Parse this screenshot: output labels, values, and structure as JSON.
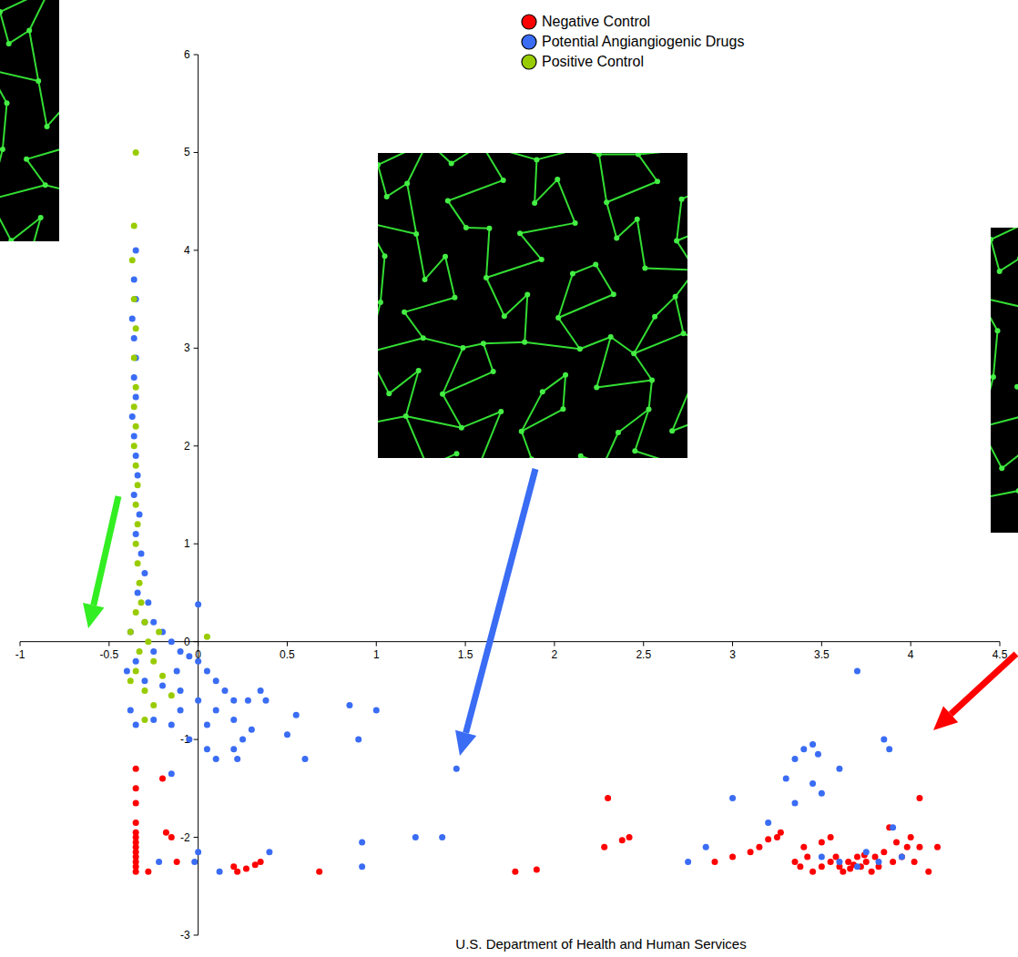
{
  "chart_data": {
    "type": "scatter",
    "annotations": [
      "U.S. Department of Health and Human Services"
    ],
    "xlim": [
      -1,
      4.5
    ],
    "ylim": [
      -3,
      6
    ],
    "xticks": [
      -1,
      -0.5,
      0,
      0.5,
      1,
      1.5,
      2,
      2.5,
      3,
      3.5,
      4,
      4.5
    ],
    "yticks": [
      -3,
      -2,
      -1,
      0,
      1,
      2,
      3,
      4,
      5,
      6
    ],
    "grid": false,
    "legend": "top-right",
    "marker": "circle",
    "series": [
      {
        "name": "Negative Control",
        "color": "#ff0000",
        "x": [
          -0.35,
          -0.35,
          -0.35,
          -0.35,
          -0.35,
          -0.35,
          -0.35,
          -0.35,
          -0.35,
          -0.35,
          -0.35,
          -0.35,
          -0.35,
          -0.28,
          -0.2,
          -0.18,
          -0.15,
          -0.12,
          0.2,
          0.22,
          0.27,
          0.32,
          0.35,
          0.68,
          1.78,
          1.9,
          2.3,
          2.28,
          2.38,
          2.42,
          2.9,
          3.0,
          3.1,
          3.15,
          3.2,
          3.25,
          3.27,
          3.35,
          3.38,
          3.42,
          3.45,
          3.5,
          3.5,
          3.55,
          3.58,
          3.6,
          3.62,
          3.65,
          3.68,
          3.7,
          3.72,
          3.75,
          3.78,
          3.8,
          3.82,
          3.85,
          3.88,
          3.9,
          3.92,
          3.95,
          3.98,
          4.0,
          4.02,
          4.05,
          4.05,
          4.1,
          4.15,
          3.4,
          3.55,
          3.66,
          3.74
        ],
        "values": [
          -1.3,
          -1.5,
          -1.65,
          -1.85,
          -1.95,
          -2.0,
          -2.05,
          -2.1,
          -2.15,
          -2.2,
          -2.25,
          -2.3,
          -2.35,
          -2.35,
          -1.4,
          -1.95,
          -2.0,
          -2.25,
          -2.3,
          -2.35,
          -2.32,
          -2.28,
          -2.25,
          -2.35,
          -2.35,
          -2.33,
          -1.6,
          -2.1,
          -2.03,
          -2.0,
          -2.25,
          -2.2,
          -2.15,
          -2.1,
          -2.02,
          -2.0,
          -1.95,
          -2.25,
          -2.3,
          -2.2,
          -2.35,
          -2.05,
          -2.3,
          -2.25,
          -2.2,
          -2.3,
          -2.35,
          -2.25,
          -2.28,
          -2.2,
          -2.3,
          -2.25,
          -2.35,
          -2.2,
          -2.3,
          -2.15,
          -1.9,
          -2.25,
          -2.05,
          -2.2,
          -2.1,
          -2.0,
          -2.25,
          -1.6,
          -2.1,
          -2.35,
          -2.1,
          -2.1,
          -2.0,
          -2.32,
          -2.18
        ]
      },
      {
        "name": "Potential Angiangiogenic Drugs",
        "color": "#3a6cf4",
        "x": [
          -0.35,
          -0.36,
          -0.35,
          -0.37,
          -0.36,
          -0.35,
          -0.36,
          -0.35,
          -0.37,
          -0.36,
          -0.35,
          -0.34,
          -0.36,
          -0.33,
          -0.35,
          -0.32,
          -0.3,
          -0.34,
          -0.28,
          -0.25,
          -0.2,
          -0.15,
          -0.1,
          -0.05,
          0.0,
          0.0,
          0.05,
          0.1,
          0.15,
          0.2,
          -0.4,
          -0.3,
          -0.2,
          -0.1,
          0.0,
          0.1,
          0.2,
          0.28,
          0.35,
          0.38,
          0.3,
          0.25,
          0.2,
          0.22,
          0.1,
          0.05,
          -0.05,
          -0.15,
          0.5,
          0.6,
          0.55,
          0.85,
          0.9,
          1.0,
          1.45,
          -0.25,
          -0.35,
          -0.15,
          -0.22,
          -0.02,
          0.0,
          0.12,
          0.4,
          0.92,
          0.92,
          1.22,
          1.37,
          2.75,
          2.85,
          3.0,
          3.2,
          3.3,
          3.35,
          3.4,
          3.45,
          3.48,
          3.5,
          3.6,
          3.7,
          3.85,
          3.88,
          3.9,
          3.95,
          3.5,
          3.6,
          3.7,
          3.75,
          3.82,
          3.45,
          3.35,
          0.05,
          -0.1,
          -0.38,
          -0.3,
          -0.38,
          -0.25,
          -0.35,
          -0.12
        ],
        "values": [
          4.0,
          3.7,
          3.5,
          3.3,
          3.1,
          2.9,
          2.7,
          2.5,
          2.3,
          2.1,
          1.9,
          1.7,
          1.5,
          1.3,
          1.1,
          0.9,
          0.7,
          0.5,
          0.4,
          0.2,
          0.1,
          0.0,
          -0.1,
          -0.15,
          0.38,
          -0.2,
          -0.3,
          -0.4,
          -0.5,
          -0.6,
          -0.3,
          -0.4,
          -0.45,
          -0.5,
          -0.6,
          -0.7,
          -0.8,
          -0.6,
          -0.5,
          -0.6,
          -0.9,
          -1.0,
          -1.1,
          -1.2,
          -1.2,
          -1.1,
          -1.0,
          -1.35,
          -0.95,
          -1.2,
          -0.75,
          -0.65,
          -1.0,
          -0.7,
          -1.3,
          -0.8,
          -0.85,
          -0.85,
          -2.25,
          -2.25,
          -2.15,
          -2.35,
          -2.15,
          -2.05,
          -2.3,
          -2.0,
          -2.0,
          -2.25,
          -2.1,
          -1.6,
          -1.85,
          -1.4,
          -1.2,
          -1.1,
          -1.05,
          -1.15,
          -1.55,
          -1.3,
          -0.3,
          -1.0,
          -1.1,
          -1.9,
          -2.2,
          -2.2,
          -2.25,
          -2.3,
          -2.15,
          -2.25,
          -1.45,
          -1.65,
          -0.85,
          -0.7,
          -0.7,
          0.2,
          0.1,
          -0.1,
          -0.2,
          -0.3
        ]
      },
      {
        "name": "Positive Control",
        "color": "#99cc00",
        "x": [
          -0.35,
          -0.36,
          -0.37,
          -0.36,
          -0.35,
          -0.36,
          -0.35,
          -0.36,
          -0.35,
          -0.36,
          -0.35,
          -0.34,
          -0.35,
          -0.34,
          -0.35,
          -0.34,
          -0.33,
          -0.32,
          -0.35,
          -0.3,
          -0.38,
          -0.28,
          -0.33,
          -0.25,
          -0.35,
          -0.2,
          -0.3,
          -0.15,
          -0.25,
          -0.3,
          0.05,
          -0.38,
          -0.22
        ],
        "values": [
          5.0,
          4.25,
          3.9,
          3.5,
          3.2,
          2.9,
          2.6,
          2.4,
          2.2,
          2.0,
          1.8,
          1.6,
          1.4,
          1.2,
          1.0,
          0.8,
          0.6,
          0.4,
          0.3,
          0.2,
          0.1,
          0.0,
          -0.1,
          -0.2,
          -0.3,
          -0.35,
          -0.5,
          -0.55,
          -0.65,
          -0.8,
          0.05,
          -0.4,
          0.1
        ]
      }
    ]
  }
}
